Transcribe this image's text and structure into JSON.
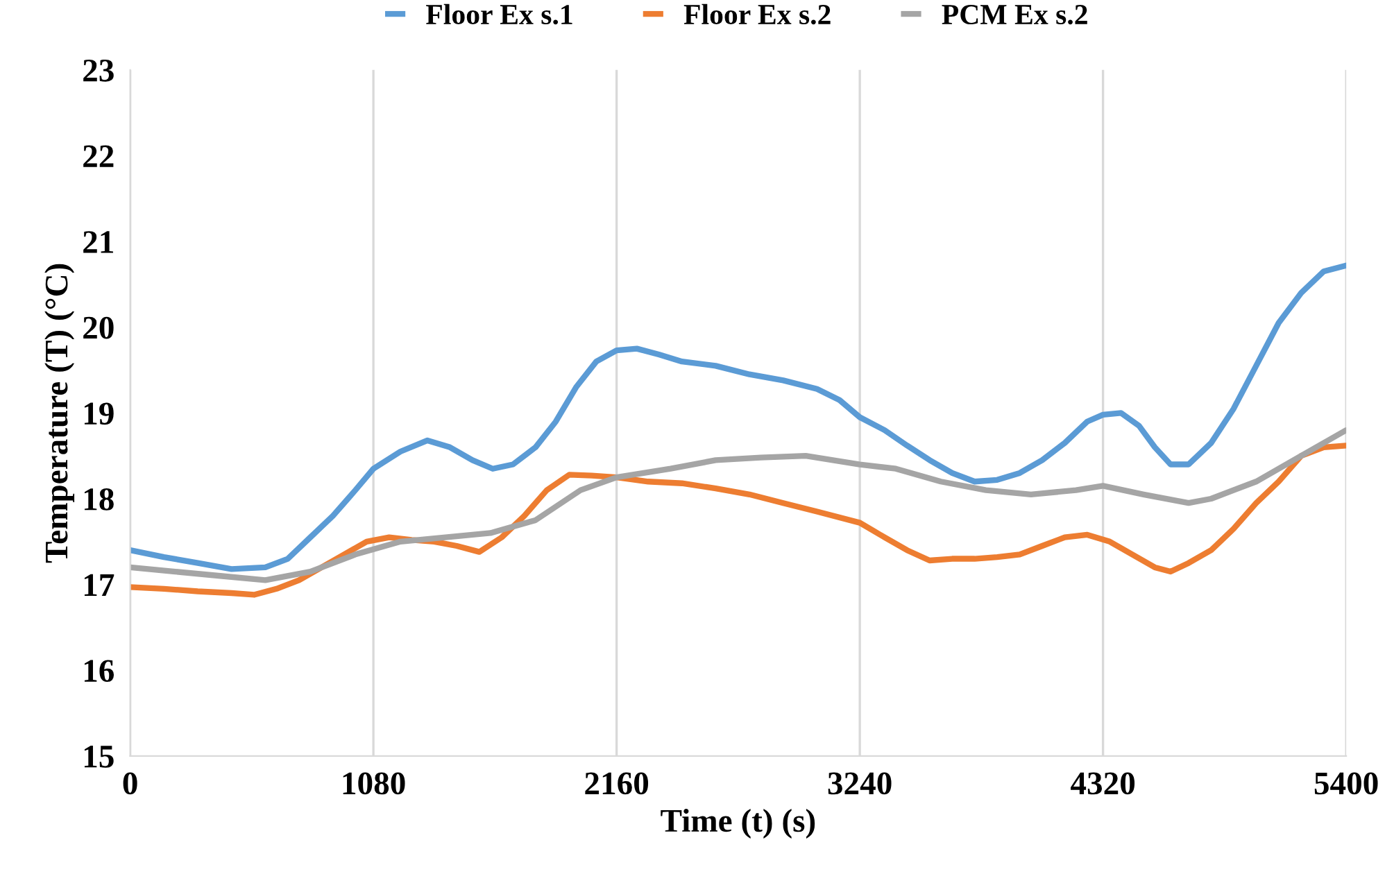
{
  "chart_data": {
    "type": "line",
    "xlabel": "Time (t) (s)",
    "ylabel": "Temperature (T) (°C)",
    "xlim": [
      0,
      5400
    ],
    "xticks": [
      0,
      1080,
      2160,
      3240,
      4320,
      5400
    ],
    "ylim": [
      15,
      23
    ],
    "yticks": [
      15,
      16,
      17,
      18,
      19,
      20,
      21,
      22,
      23
    ],
    "grid": "x",
    "legend": "top",
    "marker": "none",
    "line_style": "solid",
    "series": [
      {
        "name": "Floor Ex s.1",
        "color": "#5b9bd5",
        "x": [
          0,
          150,
          300,
          450,
          600,
          700,
          800,
          900,
          1000,
          1080,
          1200,
          1320,
          1420,
          1520,
          1610,
          1700,
          1800,
          1890,
          1980,
          2070,
          2160,
          2250,
          2350,
          2450,
          2600,
          2750,
          2900,
          3050,
          3150,
          3240,
          3350,
          3450,
          3550,
          3650,
          3750,
          3850,
          3950,
          4050,
          4150,
          4250,
          4320,
          4400,
          4480,
          4550,
          4620,
          4700,
          4800,
          4900,
          5000,
          5100,
          5200,
          5300,
          5400
        ],
        "values": [
          17.4,
          17.32,
          17.25,
          17.18,
          17.2,
          17.3,
          17.55,
          17.8,
          18.1,
          18.35,
          18.55,
          18.68,
          18.6,
          18.45,
          18.35,
          18.4,
          18.6,
          18.9,
          19.3,
          19.6,
          19.73,
          19.75,
          19.68,
          19.6,
          19.55,
          19.45,
          19.38,
          19.28,
          19.15,
          18.95,
          18.8,
          18.62,
          18.45,
          18.3,
          18.2,
          18.22,
          18.3,
          18.45,
          18.65,
          18.9,
          18.98,
          19.0,
          18.85,
          18.6,
          18.4,
          18.4,
          18.65,
          19.05,
          19.55,
          20.05,
          20.4,
          20.65,
          20.72
        ]
      },
      {
        "name": "Floor Ex s.2",
        "color": "#ed7d31",
        "x": [
          0,
          150,
          300,
          450,
          550,
          650,
          750,
          850,
          950,
          1050,
          1150,
          1250,
          1350,
          1450,
          1550,
          1650,
          1750,
          1850,
          1950,
          2050,
          2160,
          2300,
          2450,
          2600,
          2750,
          2900,
          3050,
          3240,
          3350,
          3450,
          3550,
          3650,
          3750,
          3850,
          3950,
          4050,
          4150,
          4250,
          4350,
          4450,
          4550,
          4620,
          4700,
          4800,
          4900,
          5000,
          5100,
          5200,
          5300,
          5400
        ],
        "values": [
          16.97,
          16.95,
          16.92,
          16.9,
          16.88,
          16.95,
          17.05,
          17.2,
          17.35,
          17.5,
          17.55,
          17.52,
          17.5,
          17.45,
          17.38,
          17.55,
          17.8,
          18.1,
          18.28,
          18.27,
          18.25,
          18.2,
          18.18,
          18.12,
          18.05,
          17.95,
          17.85,
          17.72,
          17.55,
          17.4,
          17.28,
          17.3,
          17.3,
          17.32,
          17.35,
          17.45,
          17.55,
          17.58,
          17.5,
          17.35,
          17.2,
          17.15,
          17.25,
          17.4,
          17.65,
          17.95,
          18.2,
          18.5,
          18.6,
          18.62
        ]
      },
      {
        "name": "PCM Ex s.2",
        "color": "#a5a5a5",
        "x": [
          0,
          200,
          400,
          600,
          800,
          1000,
          1200,
          1400,
          1600,
          1800,
          2000,
          2160,
          2400,
          2600,
          2800,
          3000,
          3240,
          3400,
          3600,
          3800,
          4000,
          4200,
          4320,
          4500,
          4700,
          4800,
          5000,
          5200,
          5400
        ],
        "values": [
          17.2,
          17.15,
          17.1,
          17.05,
          17.15,
          17.35,
          17.5,
          17.55,
          17.6,
          17.75,
          18.1,
          18.25,
          18.35,
          18.45,
          18.48,
          18.5,
          18.4,
          18.35,
          18.2,
          18.1,
          18.05,
          18.1,
          18.15,
          18.05,
          17.95,
          18.0,
          18.2,
          18.5,
          18.8
        ]
      }
    ]
  }
}
